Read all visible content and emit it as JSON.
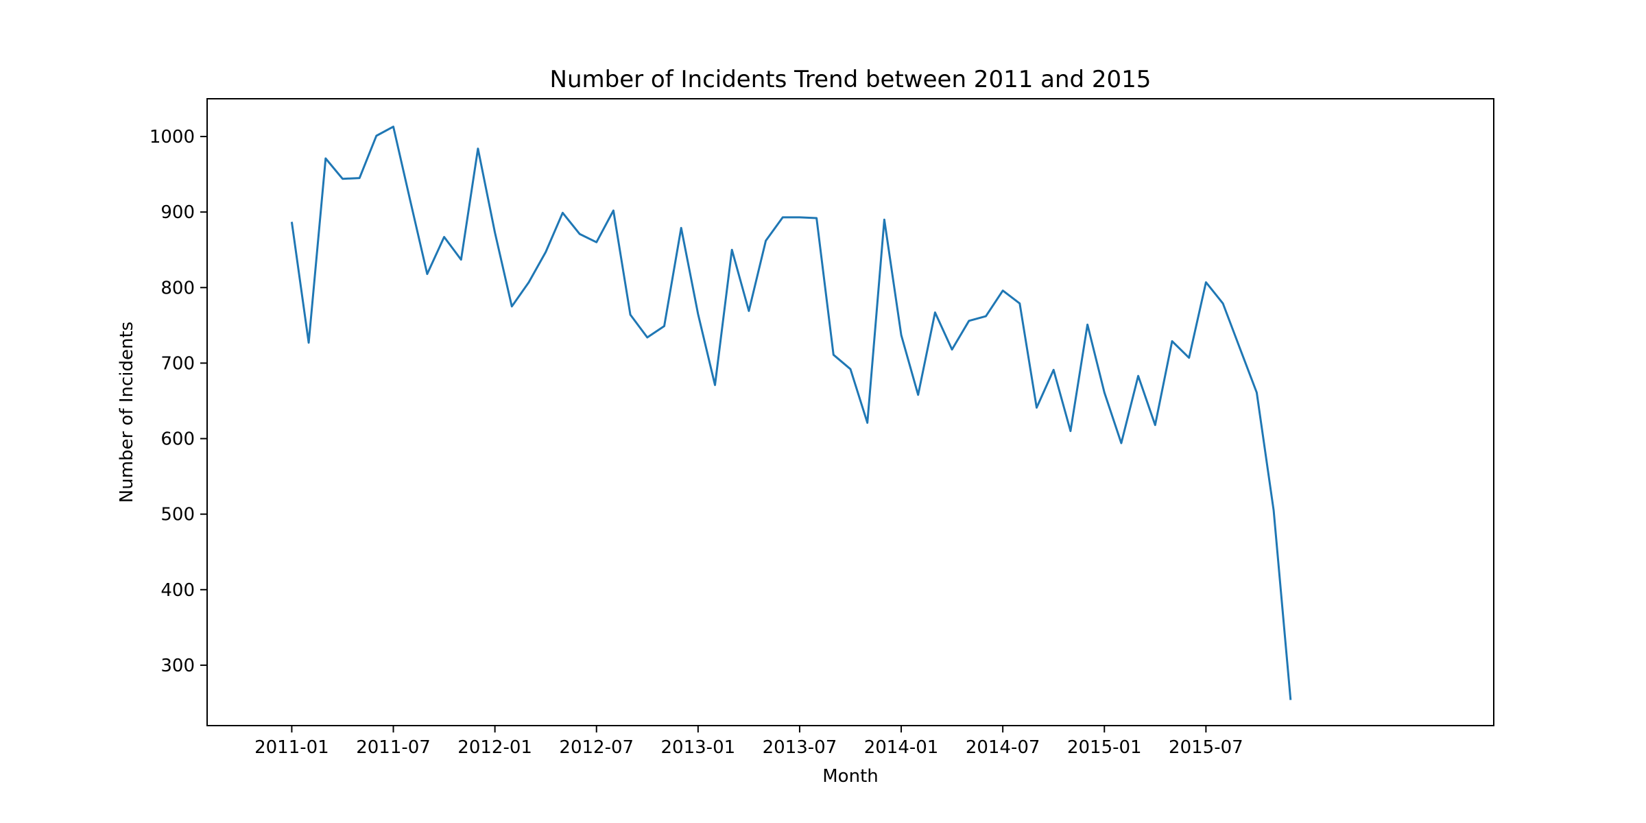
{
  "chart_data": {
    "type": "line",
    "title": "Number of Incidents Trend between 2011 and 2015",
    "xlabel": "Month",
    "ylabel": "Number of Incidents",
    "grid": false,
    "ylim": [
      220,
      1050
    ],
    "yticks": [
      300,
      400,
      500,
      600,
      700,
      800,
      900,
      1000
    ],
    "xlim": [
      "2010-08",
      "2016-12"
    ],
    "xticks": [
      "2011-01",
      "2011-07",
      "2012-01",
      "2012-07",
      "2013-01",
      "2013-07",
      "2014-01",
      "2014-07",
      "2015-01",
      "2015-07"
    ],
    "series": [
      {
        "color": "#1f77b4",
        "x": [
          "2011-01",
          "2011-02",
          "2011-03",
          "2011-04",
          "2011-05",
          "2011-06",
          "2011-07",
          "2011-08",
          "2011-09",
          "2011-10",
          "2011-11",
          "2011-12",
          "2012-01",
          "2012-02",
          "2012-03",
          "2012-04",
          "2012-05",
          "2012-06",
          "2012-07",
          "2012-08",
          "2012-09",
          "2012-10",
          "2012-11",
          "2012-12",
          "2013-01",
          "2013-02",
          "2013-03",
          "2013-04",
          "2013-05",
          "2013-06",
          "2013-07",
          "2013-08",
          "2013-09",
          "2013-10",
          "2013-11",
          "2013-12",
          "2014-01",
          "2014-02",
          "2014-03",
          "2014-04",
          "2014-05",
          "2014-06",
          "2014-07",
          "2014-08",
          "2014-09",
          "2014-10",
          "2014-11",
          "2014-12",
          "2015-01",
          "2015-02",
          "2015-03",
          "2015-04",
          "2015-05",
          "2015-06",
          "2015-07",
          "2015-08",
          "2015-09",
          "2015-10",
          "2015-11",
          "2015-12"
        ],
        "values": [
          887,
          727,
          971,
          944,
          945,
          1001,
          1013,
          915,
          818,
          867,
          837,
          984,
          873,
          775,
          807,
          847,
          899,
          871,
          860,
          902,
          764,
          734,
          749,
          879,
          765,
          671,
          850,
          769,
          862,
          893,
          893,
          892,
          711,
          692,
          621,
          890,
          737,
          658,
          767,
          718,
          756,
          762,
          796,
          779,
          641,
          691,
          610,
          751,
          661,
          594,
          683,
          618,
          729,
          707,
          807,
          779,
          720,
          661,
          505,
          254
        ]
      }
    ]
  }
}
